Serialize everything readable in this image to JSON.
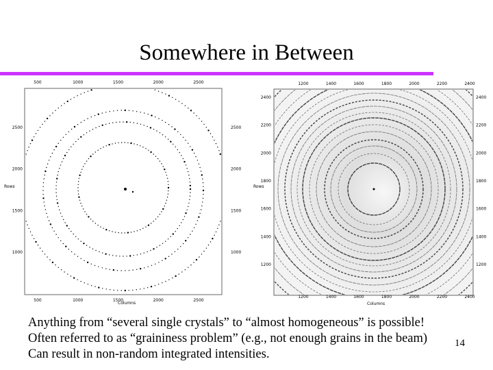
{
  "slide": {
    "title": "Somewhere in Between",
    "accent_color": "#cc33ff",
    "slide_number": "14",
    "bullets": [
      "Anything from “several single crystals” to “almost homogeneous” is possible!",
      "Often referred to as “graininess problem” (e.g., not enough grains in the beam)",
      "Can result in non-random integrated intensities."
    ]
  },
  "left_image": {
    "top_ticks": [
      "500",
      "1000",
      "1500",
      "2000",
      "2500"
    ],
    "bottom_ticks": [
      "500",
      "1000",
      "1500",
      "2000",
      "2500"
    ],
    "left_ticks": [
      "2500",
      "2000",
      "1500",
      "1000"
    ],
    "right_ticks": [
      "2500",
      "2000",
      "1500",
      "1000"
    ],
    "ylabel": "Rows",
    "xlabel": "Columns"
  },
  "right_image": {
    "top_ticks": [
      "1200",
      "1400",
      "1600",
      "1800",
      "2000",
      "2200",
      "2400"
    ],
    "bottom_ticks": [
      "1200",
      "1400",
      "1600",
      "1800",
      "2000",
      "2200",
      "2400"
    ],
    "left_ticks": [
      "2400",
      "2200",
      "2000",
      "1800",
      "1600",
      "1400",
      "1200"
    ],
    "right_ticks": [
      "2400",
      "2200",
      "2000",
      "1800",
      "1600",
      "1400",
      "1200"
    ],
    "ylabel": "Rows",
    "xlabel": "Columns"
  }
}
